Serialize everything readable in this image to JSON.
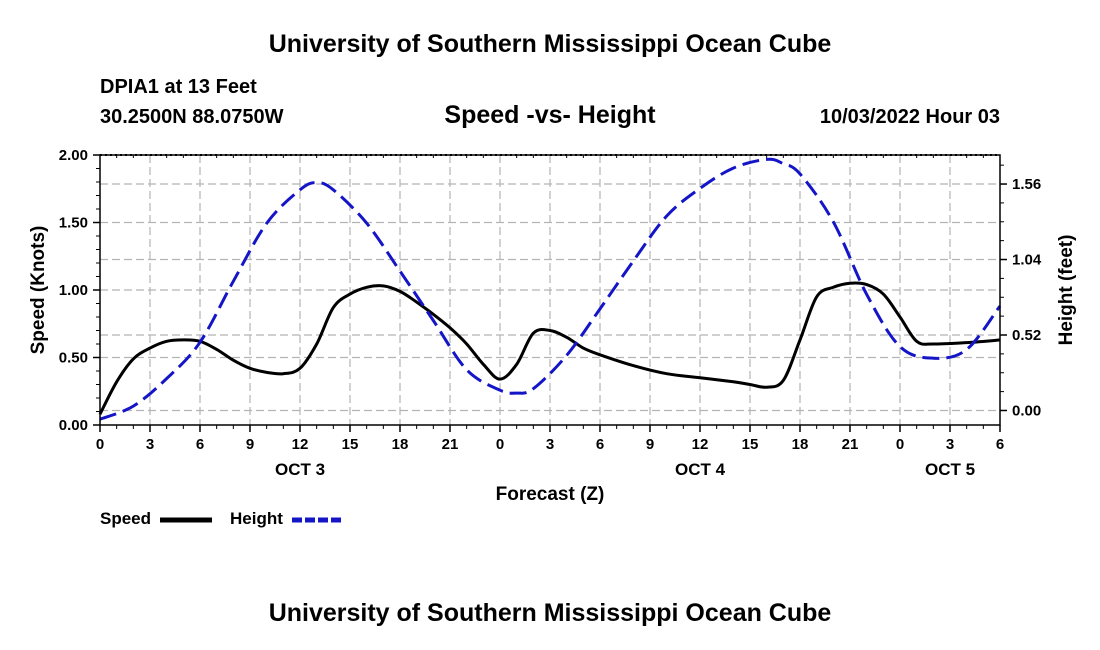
{
  "header": {
    "title": "University of Southern Mississippi Ocean Cube",
    "station": "DPIA1 at 13 Feet",
    "coords": "30.2500N  88.0750W",
    "chart_title": "Speed -vs- Height",
    "datetime": "10/03/2022 Hour 03"
  },
  "footer": {
    "title": "University of Southern Mississippi Ocean Cube"
  },
  "legend": {
    "speed_label": "Speed",
    "height_label": "Height"
  },
  "colors": {
    "speed": "#000000",
    "height": "#1515c8",
    "grid": "#b4b4b4"
  },
  "chart_data": {
    "type": "line",
    "title": "Speed -vs- Height",
    "xlabel": "Forecast (Z)",
    "ylabel": "Speed (Knots)",
    "y2label": "Height (feet)",
    "xlim": [
      0,
      54
    ],
    "ylim": [
      0,
      2.0
    ],
    "y2lim": [
      -0.1,
      1.76
    ],
    "x_ticks": [
      0,
      3,
      6,
      9,
      12,
      15,
      18,
      21,
      24,
      27,
      30,
      33,
      36,
      39,
      42,
      45,
      48,
      51,
      54
    ],
    "x_tick_labels": [
      "0",
      "3",
      "6",
      "9",
      "12",
      "15",
      "18",
      "21",
      "0",
      "3",
      "6",
      "9",
      "12",
      "15",
      "18",
      "21",
      "0",
      "3",
      "6"
    ],
    "day_labels": [
      {
        "x": 12,
        "label": "OCT 3"
      },
      {
        "x": 36,
        "label": "OCT 4"
      },
      {
        "x": 51,
        "label": "OCT 5"
      }
    ],
    "y_ticks": [
      0.0,
      0.5,
      1.0,
      1.5,
      2.0
    ],
    "y_tick_labels": [
      "0.00",
      "0.50",
      "1.00",
      "1.50",
      "2.00"
    ],
    "y2_ticks": [
      0.0,
      0.52,
      1.04,
      1.56
    ],
    "y2_tick_labels": [
      "0.00",
      "0.52",
      "1.04",
      "1.56"
    ],
    "grid": true,
    "series": [
      {
        "name": "Speed",
        "axis": "left",
        "style": "solid",
        "x": [
          0,
          1,
          2,
          3,
          4,
          5,
          6,
          7,
          8,
          9,
          10,
          11,
          12,
          13,
          14,
          15,
          16,
          17,
          18,
          19,
          20,
          21,
          22,
          23,
          24,
          25,
          26,
          27,
          28,
          29,
          30,
          32,
          34,
          36,
          38,
          39,
          40,
          41,
          42,
          43,
          44,
          45,
          46,
          47,
          48,
          49,
          50,
          52,
          54
        ],
        "values": [
          0.08,
          0.32,
          0.49,
          0.57,
          0.62,
          0.63,
          0.62,
          0.56,
          0.48,
          0.42,
          0.39,
          0.38,
          0.42,
          0.6,
          0.87,
          0.97,
          1.02,
          1.03,
          0.99,
          0.91,
          0.82,
          0.72,
          0.6,
          0.45,
          0.34,
          0.45,
          0.68,
          0.7,
          0.65,
          0.57,
          0.52,
          0.44,
          0.38,
          0.35,
          0.32,
          0.3,
          0.28,
          0.33,
          0.63,
          0.95,
          1.02,
          1.05,
          1.04,
          0.97,
          0.8,
          0.62,
          0.6,
          0.61,
          0.63
        ]
      },
      {
        "name": "Height",
        "axis": "right",
        "style": "dashed",
        "x": [
          0,
          2,
          4,
          6,
          8,
          10,
          12,
          13,
          14,
          16,
          18,
          20,
          22,
          24,
          25,
          26,
          28,
          30,
          32,
          34,
          36,
          38,
          40,
          41,
          42,
          44,
          46,
          48,
          50,
          52,
          54
        ],
        "values": [
          -0.06,
          0.03,
          0.22,
          0.47,
          0.89,
          1.29,
          1.52,
          1.57,
          1.52,
          1.29,
          0.96,
          0.62,
          0.28,
          0.14,
          0.12,
          0.15,
          0.38,
          0.7,
          1.03,
          1.34,
          1.53,
          1.67,
          1.73,
          1.7,
          1.63,
          1.3,
          0.8,
          0.44,
          0.36,
          0.42,
          0.72
        ]
      }
    ]
  }
}
